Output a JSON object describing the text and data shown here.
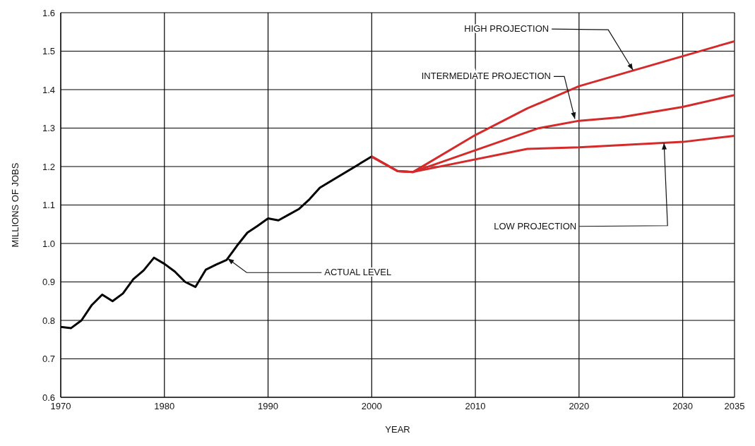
{
  "chart_data": {
    "type": "line",
    "xlabel": "YEAR",
    "ylabel": "MILLIONS OF JOBS",
    "xlim": [
      1970,
      2035
    ],
    "xticks": [
      1970,
      1980,
      1990,
      2000,
      2010,
      2020,
      2030,
      2035
    ],
    "ylim": [
      0.6,
      1.6
    ],
    "yticks": [
      0.6,
      0.7,
      0.8,
      0.9,
      {
        "value": 1,
        "label": "1.0"
      },
      1.1,
      1.2,
      1.3,
      1.4,
      1.5,
      1.6
    ],
    "grid": true,
    "marker": "none",
    "line_style": "solid",
    "series": [
      {
        "color": "#000000",
        "x": [
          1970,
          1971,
          1972,
          1973,
          1974,
          1975,
          1976,
          1977,
          1978,
          1979,
          1980,
          1981,
          1982,
          1983,
          1984,
          1985,
          1986,
          1987,
          1988,
          1989,
          1990,
          1991,
          1992,
          1993,
          1994,
          1995,
          2000
        ],
        "values": [
          0.783,
          0.78,
          0.8,
          0.84,
          0.867,
          0.85,
          0.87,
          0.907,
          0.93,
          0.963,
          0.947,
          0.927,
          0.9,
          0.887,
          0.932,
          0.945,
          0.957,
          0.994,
          1.028,
          1.046,
          1.065,
          1.06,
          1.075,
          1.09,
          1.115,
          1.145,
          1.226
        ]
      },
      {
        "color": "#d42a2a",
        "x": [
          2000,
          2002.5,
          2004,
          2010,
          2015,
          2020,
          2030,
          2035
        ],
        "values": [
          1.226,
          1.188,
          1.186,
          1.282,
          1.351,
          1.409,
          1.487,
          1.526
        ]
      },
      {
        "color": "#d42a2a",
        "x": [
          2000,
          2002.5,
          2004,
          2016,
          2020,
          2024,
          2030,
          2035
        ],
        "values": [
          1.226,
          1.188,
          1.186,
          1.299,
          1.319,
          1.328,
          1.355,
          1.386
        ]
      },
      {
        "color": "#d42a2a",
        "x": [
          2000,
          2002.5,
          2004,
          2015,
          2020,
          2030,
          2035
        ],
        "values": [
          1.226,
          1.188,
          1.186,
          1.246,
          1.25,
          1.264,
          1.28
        ]
      }
    ],
    "annotations": [
      {
        "text": "HIGH PROJECTION",
        "x": 2025.2,
        "y": 1.451
      },
      {
        "text": "INTERMEDIATE PROJECTION",
        "x": 2019.6,
        "y": 1.324
      },
      {
        "text": "LOW PROJECTION",
        "x": 2028.2,
        "y": 1.261
      },
      {
        "text": "ACTUAL LEVEL",
        "x": 1986.1,
        "y": 0.961
      }
    ]
  }
}
